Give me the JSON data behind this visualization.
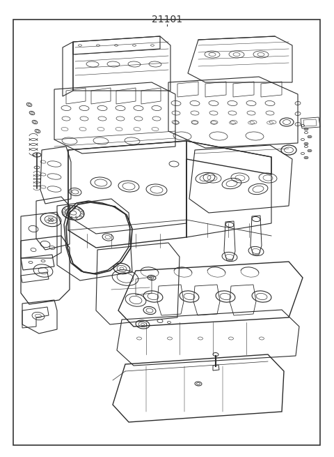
{
  "title": "21101",
  "bg_color": "#ffffff",
  "border_color": "#333333",
  "title_fontsize": 10,
  "fig_width": 4.8,
  "fig_height": 6.55,
  "dpi": 100
}
